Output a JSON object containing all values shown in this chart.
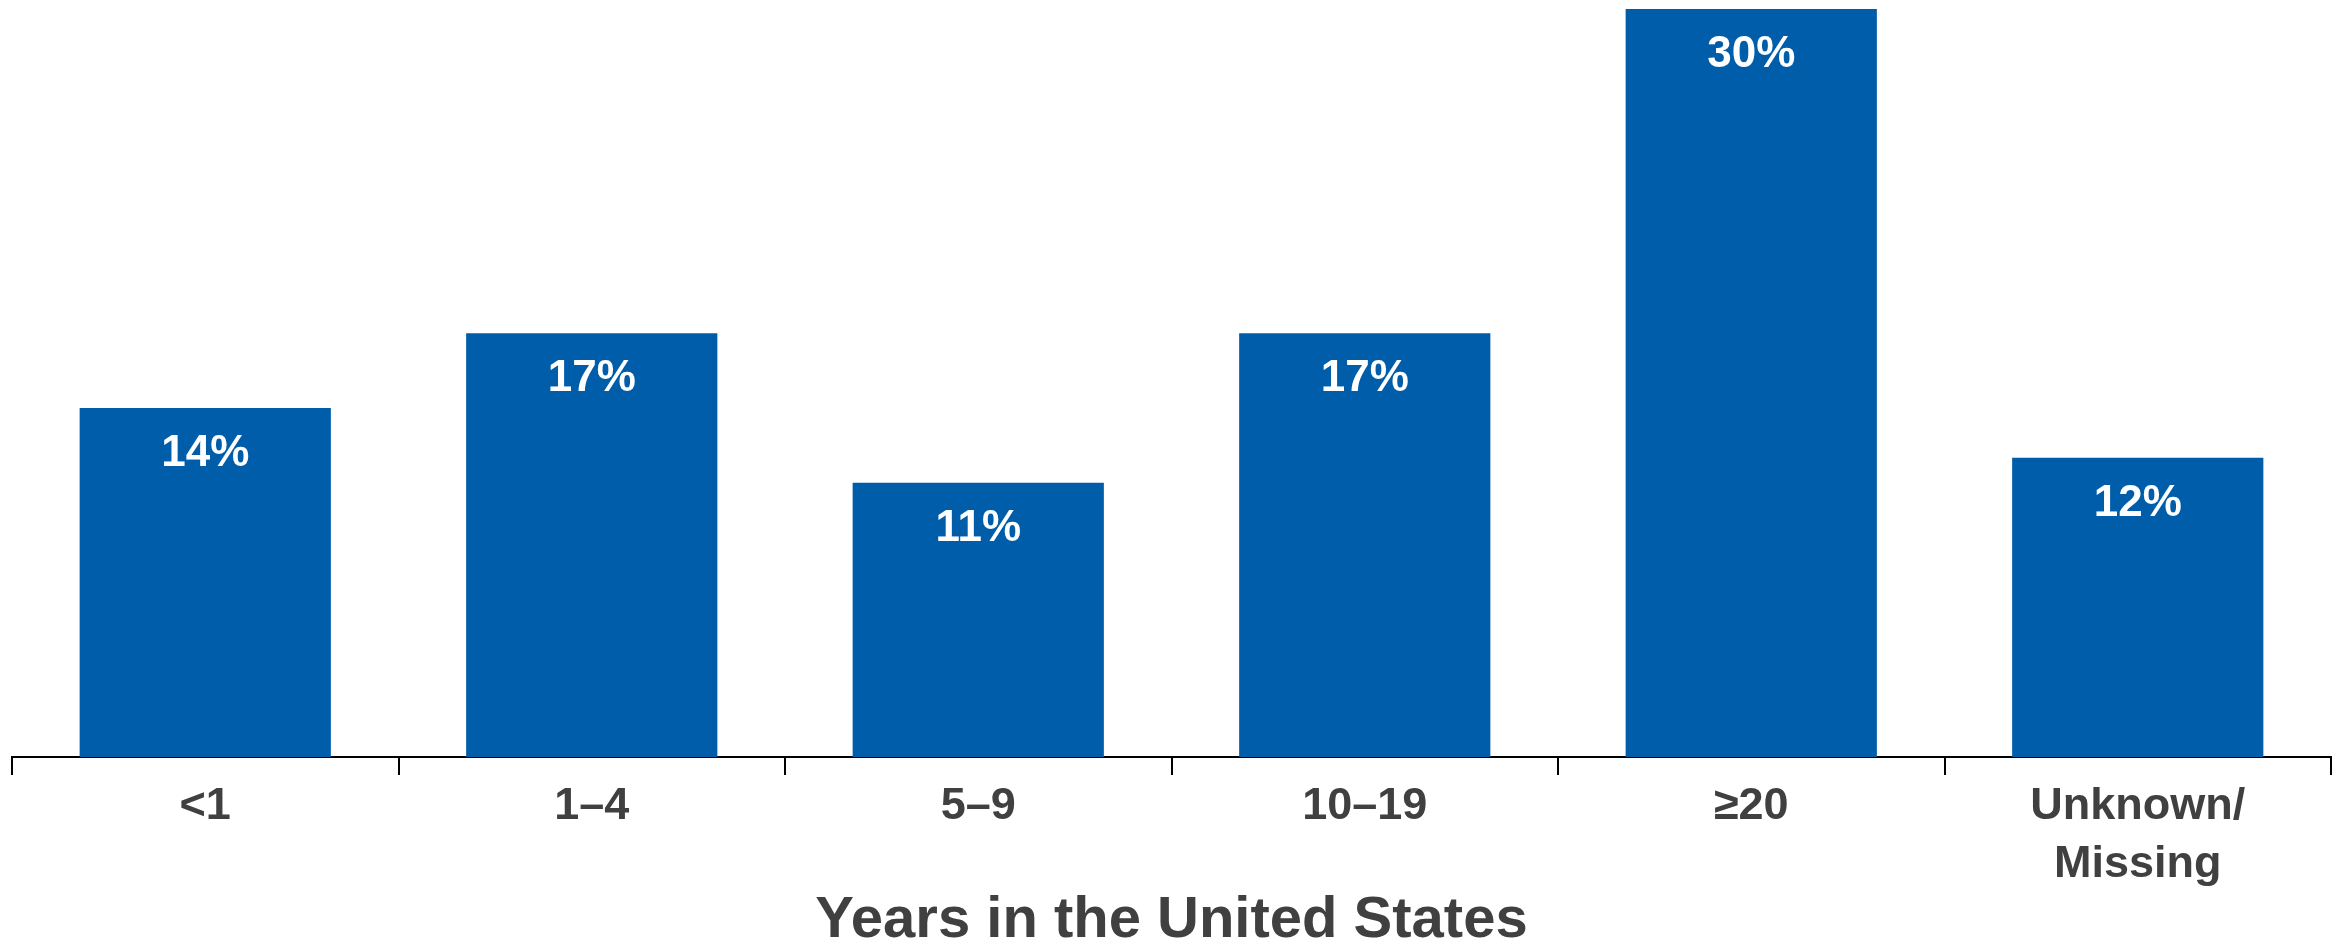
{
  "chart_data": {
    "type": "bar",
    "xlabel": "Years in the United States",
    "categories": [
      "<1",
      "1–4",
      "5–9",
      "10–19",
      "≥20",
      "Unknown/\nMissing"
    ],
    "values": [
      14,
      17,
      11,
      17,
      30,
      12
    ],
    "color": "#005daa",
    "value_labels": [
      "14%",
      "17%",
      "11%",
      "17%",
      "30%",
      "12%"
    ]
  }
}
